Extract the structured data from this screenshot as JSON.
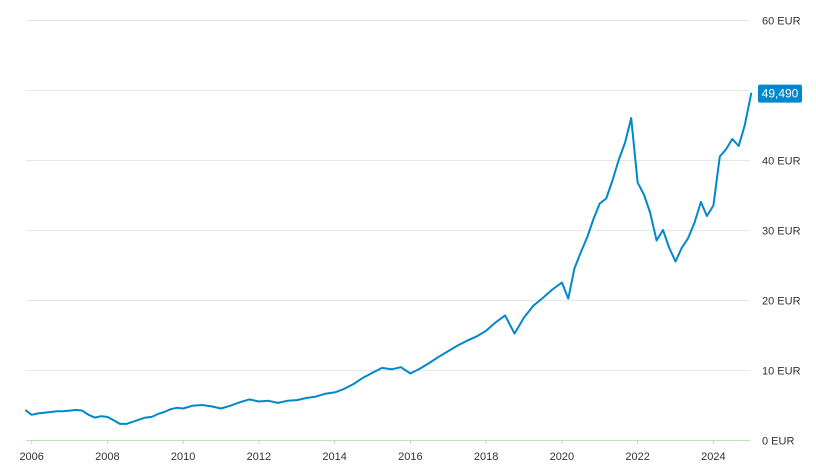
{
  "chart_data": {
    "type": "line",
    "currency": "EUR",
    "y_ticks": [
      0,
      10,
      20,
      30,
      40,
      50,
      60
    ],
    "y_tick_labels": [
      "0 EUR",
      "10 EUR",
      "20 EUR",
      "30 EUR",
      "40 EUR",
      "50 EUR",
      "60 EUR"
    ],
    "x_ticks": [
      2006,
      2008,
      2010,
      2012,
      2014,
      2016,
      2018,
      2020,
      2022,
      2024
    ],
    "x_tick_labels": [
      "2006",
      "2008",
      "2010",
      "2012",
      "2014",
      "2016",
      "2018",
      "2020",
      "2022",
      "2024"
    ],
    "xlim": [
      2005.85,
      2025.02
    ],
    "ylim": [
      0,
      60
    ],
    "grid": true,
    "last_value_label": "49,490",
    "color": "#0088cc",
    "series": [
      {
        "x": [
          2005.85,
          2006.0,
          2006.17,
          2006.33,
          2006.5,
          2006.67,
          2006.83,
          2007.0,
          2007.17,
          2007.33,
          2007.5,
          2007.67,
          2007.83,
          2008.0,
          2008.17,
          2008.33,
          2008.5,
          2008.67,
          2008.83,
          2009.0,
          2009.17,
          2009.33,
          2009.5,
          2009.67,
          2009.83,
          2010.0,
          2010.25,
          2010.5,
          2010.75,
          2011.0,
          2011.25,
          2011.5,
          2011.75,
          2012.0,
          2012.25,
          2012.5,
          2012.75,
          2013.0,
          2013.25,
          2013.5,
          2013.75,
          2014.0,
          2014.25,
          2014.5,
          2014.75,
          2015.0,
          2015.25,
          2015.5,
          2015.75,
          2016.0,
          2016.25,
          2016.5,
          2016.75,
          2017.0,
          2017.25,
          2017.5,
          2017.75,
          2018.0,
          2018.25,
          2018.5,
          2018.75,
          2019.0,
          2019.25,
          2019.5,
          2019.75,
          2020.0,
          2020.17,
          2020.33,
          2020.5,
          2020.67,
          2020.83,
          2021.0,
          2021.17,
          2021.33,
          2021.5,
          2021.67,
          2021.83,
          2022.0,
          2022.17,
          2022.33,
          2022.5,
          2022.67,
          2022.83,
          2023.0,
          2023.17,
          2023.33,
          2023.5,
          2023.67,
          2023.83,
          2024.0,
          2024.17,
          2024.33,
          2024.5,
          2024.67,
          2024.83,
          2025.0
        ],
        "y": [
          4.2,
          3.6,
          3.8,
          3.9,
          4.0,
          4.1,
          4.1,
          4.2,
          4.3,
          4.2,
          3.6,
          3.2,
          3.4,
          3.3,
          2.8,
          2.3,
          2.3,
          2.6,
          2.9,
          3.2,
          3.3,
          3.7,
          4.0,
          4.4,
          4.6,
          4.5,
          4.9,
          5.0,
          4.8,
          4.5,
          4.9,
          5.4,
          5.8,
          5.5,
          5.6,
          5.3,
          5.6,
          5.7,
          6.0,
          6.2,
          6.6,
          6.8,
          7.3,
          8.0,
          8.9,
          9.6,
          10.3,
          10.1,
          10.4,
          9.5,
          10.2,
          11.0,
          11.9,
          12.7,
          13.5,
          14.2,
          14.8,
          15.6,
          16.8,
          17.8,
          15.2,
          17.5,
          19.2,
          20.3,
          21.5,
          22.5,
          20.2,
          24.5,
          26.8,
          29.0,
          31.5,
          33.8,
          34.5,
          37.0,
          40.0,
          42.5,
          46.0,
          36.8,
          35.0,
          32.5,
          28.5,
          30.0,
          27.5,
          25.5,
          27.5,
          28.8,
          31.0,
          34.0,
          32.0,
          33.5,
          40.5,
          41.5,
          43.0,
          42.0,
          45.0,
          49.49
        ]
      }
    ]
  }
}
